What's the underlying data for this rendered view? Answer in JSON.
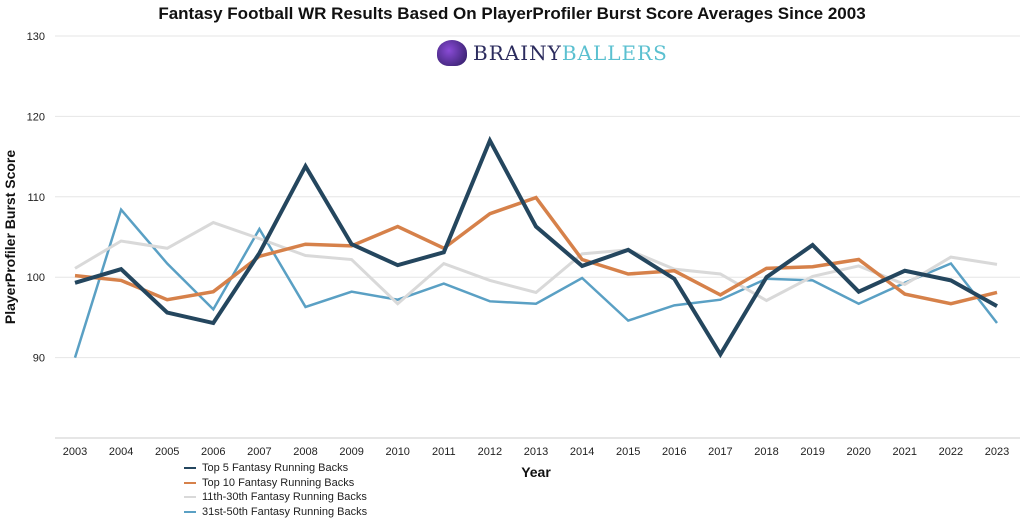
{
  "chart_data": {
    "type": "line",
    "title": "Fantasy Football WR Results Based On PlayerProfiler Burst Score Averages Since 2003",
    "xlabel": "Year",
    "ylabel": "PlayerProfiler Burst Score",
    "ylim": [
      80,
      130
    ],
    "yticks": [
      90,
      100,
      110,
      120,
      130
    ],
    "grid": true,
    "legend_position": "bottom-left",
    "x": [
      "2003",
      "2004",
      "2005",
      "2006",
      "2007",
      "2008",
      "2009",
      "2010",
      "2011",
      "2012",
      "2013",
      "2014",
      "2015",
      "2016",
      "2017",
      "2018",
      "2019",
      "2020",
      "2021",
      "2022",
      "2023"
    ],
    "series": [
      {
        "name": "Top 5 Fantasy Running Backs",
        "color": "#24465e",
        "values": [
          99.3,
          101.0,
          95.6,
          94.3,
          103.0,
          113.8,
          104.1,
          101.5,
          103.1,
          117.0,
          106.3,
          101.4,
          103.4,
          99.8,
          90.4,
          100.0,
          104.0,
          98.2,
          100.8,
          99.6,
          96.4
        ]
      },
      {
        "name": "Top 10 Fantasy Running Backs",
        "color": "#d6814a",
        "values": [
          100.2,
          99.6,
          97.2,
          98.2,
          102.6,
          104.1,
          103.9,
          106.3,
          103.6,
          107.9,
          109.9,
          102.2,
          100.4,
          100.8,
          97.8,
          101.1,
          101.3,
          102.2,
          97.9,
          96.7,
          98.1
        ]
      },
      {
        "name": "11th-30th Fantasy Running Backs",
        "color": "#d9d9d9",
        "values": [
          101.1,
          104.5,
          103.6,
          106.8,
          104.8,
          102.7,
          102.2,
          96.7,
          101.7,
          99.6,
          98.1,
          102.9,
          103.4,
          101.0,
          100.4,
          97.1,
          100.1,
          101.4,
          99.1,
          102.5,
          101.6
        ]
      },
      {
        "name": "31st-50th Fantasy Running Backs",
        "color": "#5aa0c4",
        "values": [
          90.0,
          108.4,
          101.7,
          96.0,
          106.0,
          96.3,
          98.2,
          97.2,
          99.2,
          97.0,
          96.7,
          99.9,
          94.6,
          96.5,
          97.2,
          99.8,
          99.6,
          96.7,
          99.3,
          101.7,
          94.3
        ]
      }
    ]
  },
  "logo": {
    "part1": "BRAINY",
    "part2": "BALLERS"
  }
}
